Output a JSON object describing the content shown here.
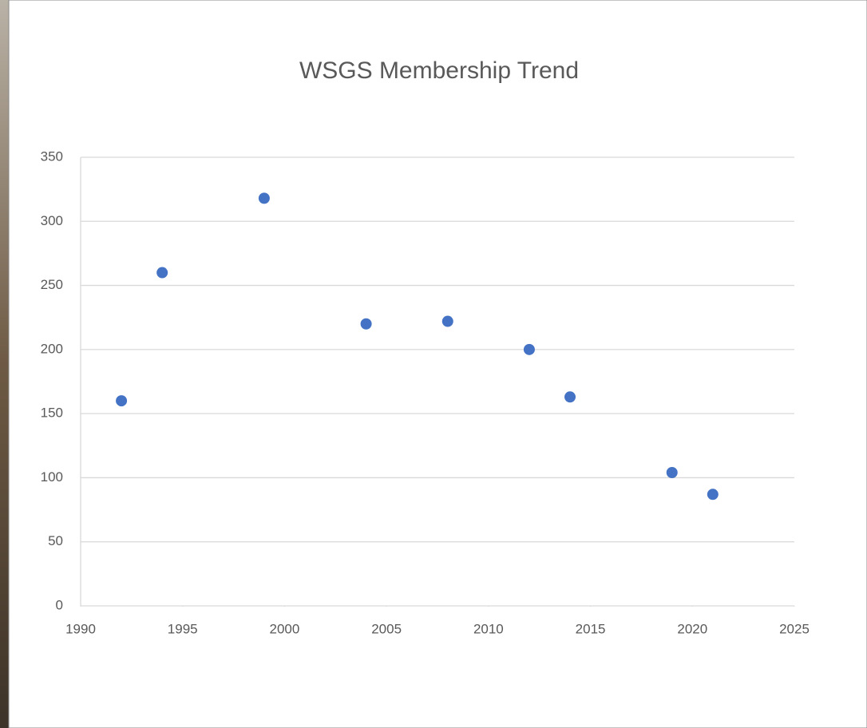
{
  "chart_data": {
    "type": "scatter",
    "title": "WSGS Membership Trend",
    "x": [
      1992,
      1994,
      1999,
      2004,
      2008,
      2012,
      2014,
      2019,
      2021
    ],
    "series": [
      {
        "color": "#4472c4",
        "values": [
          160,
          260,
          318,
          220,
          222,
          200,
          163,
          104,
          87
        ]
      }
    ],
    "xlim": [
      1990,
      2025
    ],
    "xticks": [
      1990,
      1995,
      2000,
      2005,
      2010,
      2015,
      2020,
      2025
    ],
    "ylim": [
      0,
      350
    ],
    "yticks": [
      0,
      50,
      100,
      150,
      200,
      250,
      300,
      350
    ],
    "grid": true
  }
}
